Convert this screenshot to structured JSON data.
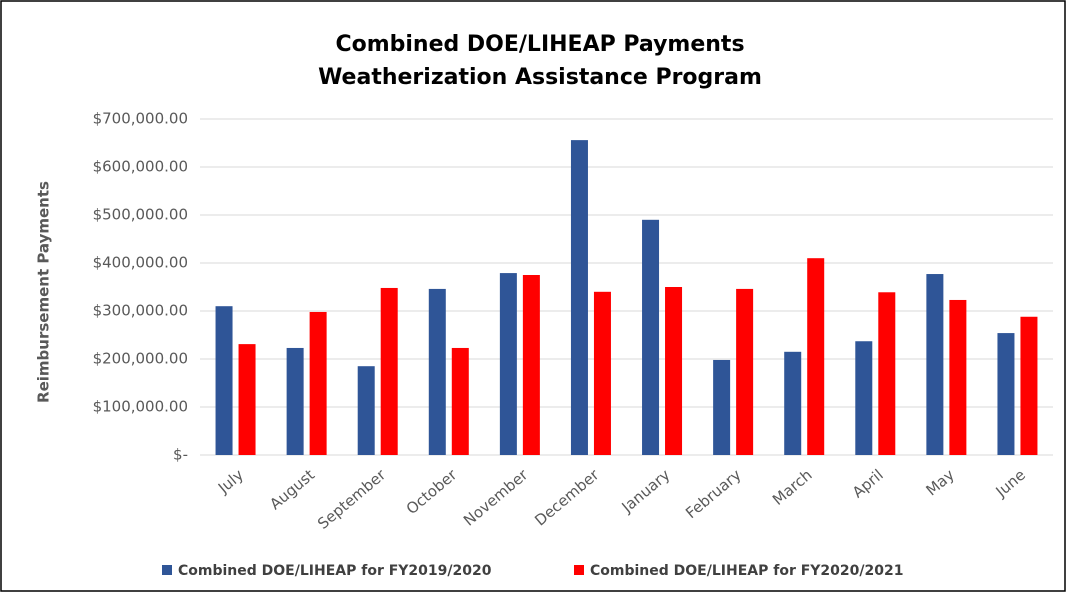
{
  "chart_data": {
    "type": "bar",
    "title": [
      "Combined DOE/LIHEAP Payments",
      "Weatherization Assistance Program"
    ],
    "y_label": "Reimbursement Payments",
    "categories": [
      "July",
      "August",
      "September",
      "October",
      "November",
      "December",
      "January",
      "February",
      "March",
      "April",
      "May",
      "June"
    ],
    "series": [
      {
        "name": "Combined DOE/LIHEAP for FY2019/2020",
        "color": "#2f5597",
        "values": [
          310000,
          223000,
          185000,
          346000,
          379000,
          656000,
          490000,
          198000,
          215000,
          237000,
          377000,
          254000
        ]
      },
      {
        "name": "Combined DOE/LIHEAP for FY2020/2021",
        "color": "#ff0000",
        "values": [
          231000,
          298000,
          348000,
          223000,
          375000,
          340000,
          350000,
          346000,
          410000,
          339000,
          323000,
          288000
        ]
      }
    ],
    "ylim": [
      0,
      700000
    ],
    "yticks": [
      {
        "value": 0,
        "label": "$-"
      },
      {
        "value": 100000,
        "label": "$100,000.00"
      },
      {
        "value": 200000,
        "label": "$200,000.00"
      },
      {
        "value": 300000,
        "label": "$300,000.00"
      },
      {
        "value": 400000,
        "label": "$400,000.00"
      },
      {
        "value": 500000,
        "label": "$500,000.00"
      },
      {
        "value": 600000,
        "label": "$600,000.00"
      },
      {
        "value": 700000,
        "label": "$700,000.00"
      }
    ],
    "grid": true,
    "legend": "bottom"
  }
}
